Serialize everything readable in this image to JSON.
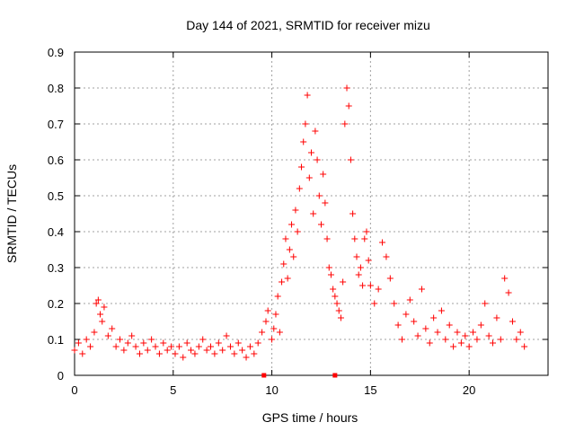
{
  "chart_data": {
    "type": "scatter",
    "title": "Day 144 of 2021, SRMTID for receiver mizu",
    "xlabel": "GPS time / hours",
    "ylabel": "SRMTID / TECUs",
    "xlim": [
      0,
      24
    ],
    "ylim": [
      0,
      0.9
    ],
    "xticks": [
      "0",
      "5",
      "10",
      "15",
      "20"
    ],
    "yticks": [
      "0",
      "0.1",
      "0.2",
      "0.3",
      "0.4",
      "0.5",
      "0.6",
      "0.7",
      "0.8",
      "0.9"
    ],
    "grid": true,
    "marker": "plus",
    "color": "#ff0000",
    "series": [
      {
        "name": "SRMTID",
        "points": [
          [
            0.0,
            0.07
          ],
          [
            0.2,
            0.09
          ],
          [
            0.4,
            0.06
          ],
          [
            0.6,
            0.1
          ],
          [
            0.8,
            0.08
          ],
          [
            1.0,
            0.12
          ],
          [
            1.1,
            0.2
          ],
          [
            1.2,
            0.21
          ],
          [
            1.3,
            0.17
          ],
          [
            1.4,
            0.15
          ],
          [
            1.5,
            0.19
          ],
          [
            1.7,
            0.11
          ],
          [
            1.9,
            0.13
          ],
          [
            2.1,
            0.08
          ],
          [
            2.3,
            0.1
          ],
          [
            2.5,
            0.07
          ],
          [
            2.7,
            0.09
          ],
          [
            2.9,
            0.11
          ],
          [
            3.1,
            0.08
          ],
          [
            3.3,
            0.06
          ],
          [
            3.5,
            0.09
          ],
          [
            3.7,
            0.07
          ],
          [
            3.9,
            0.1
          ],
          [
            4.1,
            0.08
          ],
          [
            4.3,
            0.06
          ],
          [
            4.5,
            0.09
          ],
          [
            4.7,
            0.07
          ],
          [
            4.9,
            0.08
          ],
          [
            5.1,
            0.06
          ],
          [
            5.3,
            0.08
          ],
          [
            5.5,
            0.05
          ],
          [
            5.7,
            0.09
          ],
          [
            5.9,
            0.07
          ],
          [
            6.1,
            0.06
          ],
          [
            6.3,
            0.08
          ],
          [
            6.5,
            0.1
          ],
          [
            6.7,
            0.07
          ],
          [
            6.9,
            0.08
          ],
          [
            7.1,
            0.06
          ],
          [
            7.3,
            0.09
          ],
          [
            7.5,
            0.07
          ],
          [
            7.7,
            0.11
          ],
          [
            7.9,
            0.08
          ],
          [
            8.1,
            0.06
          ],
          [
            8.3,
            0.09
          ],
          [
            8.5,
            0.07
          ],
          [
            8.7,
            0.05
          ],
          [
            8.9,
            0.08
          ],
          [
            9.1,
            0.06
          ],
          [
            9.3,
            0.09
          ],
          [
            9.5,
            0.12
          ],
          [
            9.7,
            0.15
          ],
          [
            9.8,
            0.18
          ],
          [
            10.0,
            0.1
          ],
          [
            10.1,
            0.13
          ],
          [
            10.2,
            0.17
          ],
          [
            10.3,
            0.22
          ],
          [
            10.4,
            0.12
          ],
          [
            10.5,
            0.26
          ],
          [
            10.6,
            0.31
          ],
          [
            10.7,
            0.38
          ],
          [
            10.8,
            0.27
          ],
          [
            10.9,
            0.35
          ],
          [
            11.0,
            0.42
          ],
          [
            11.1,
            0.33
          ],
          [
            11.2,
            0.46
          ],
          [
            11.3,
            0.4
          ],
          [
            11.4,
            0.52
          ],
          [
            11.5,
            0.58
          ],
          [
            11.6,
            0.65
          ],
          [
            11.7,
            0.7
          ],
          [
            11.8,
            0.78
          ],
          [
            11.9,
            0.55
          ],
          [
            12.0,
            0.62
          ],
          [
            12.1,
            0.45
          ],
          [
            12.2,
            0.68
          ],
          [
            12.3,
            0.6
          ],
          [
            12.4,
            0.5
          ],
          [
            12.5,
            0.42
          ],
          [
            12.6,
            0.56
          ],
          [
            12.7,
            0.48
          ],
          [
            12.8,
            0.38
          ],
          [
            12.9,
            0.3
          ],
          [
            13.0,
            0.28
          ],
          [
            13.1,
            0.24
          ],
          [
            13.2,
            0.22
          ],
          [
            13.3,
            0.2
          ],
          [
            13.4,
            0.18
          ],
          [
            13.5,
            0.16
          ],
          [
            13.6,
            0.26
          ],
          [
            13.7,
            0.7
          ],
          [
            13.8,
            0.8
          ],
          [
            13.9,
            0.75
          ],
          [
            14.0,
            0.6
          ],
          [
            14.1,
            0.45
          ],
          [
            14.2,
            0.38
          ],
          [
            14.3,
            0.33
          ],
          [
            14.4,
            0.28
          ],
          [
            14.5,
            0.3
          ],
          [
            14.6,
            0.25
          ],
          [
            14.7,
            0.38
          ],
          [
            14.8,
            0.4
          ],
          [
            14.9,
            0.32
          ],
          [
            15.0,
            0.25
          ],
          [
            15.2,
            0.2
          ],
          [
            15.4,
            0.24
          ],
          [
            15.6,
            0.37
          ],
          [
            15.8,
            0.33
          ],
          [
            16.0,
            0.27
          ],
          [
            16.2,
            0.2
          ],
          [
            16.4,
            0.14
          ],
          [
            16.6,
            0.1
          ],
          [
            16.8,
            0.17
          ],
          [
            17.0,
            0.21
          ],
          [
            17.2,
            0.15
          ],
          [
            17.4,
            0.11
          ],
          [
            17.6,
            0.24
          ],
          [
            17.8,
            0.13
          ],
          [
            18.0,
            0.09
          ],
          [
            18.2,
            0.16
          ],
          [
            18.4,
            0.12
          ],
          [
            18.6,
            0.18
          ],
          [
            18.8,
            0.1
          ],
          [
            19.0,
            0.14
          ],
          [
            19.2,
            0.08
          ],
          [
            19.4,
            0.12
          ],
          [
            19.6,
            0.09
          ],
          [
            19.8,
            0.11
          ],
          [
            20.0,
            0.08
          ],
          [
            20.2,
            0.12
          ],
          [
            20.4,
            0.1
          ],
          [
            20.6,
            0.14
          ],
          [
            20.8,
            0.2
          ],
          [
            21.0,
            0.11
          ],
          [
            21.2,
            0.09
          ],
          [
            21.4,
            0.16
          ],
          [
            21.6,
            0.1
          ],
          [
            21.8,
            0.27
          ],
          [
            22.0,
            0.23
          ],
          [
            22.2,
            0.15
          ],
          [
            22.4,
            0.1
          ],
          [
            22.6,
            0.12
          ],
          [
            22.8,
            0.08
          ]
        ]
      }
    ],
    "markers_on_axis": [
      9.6,
      13.2
    ]
  }
}
